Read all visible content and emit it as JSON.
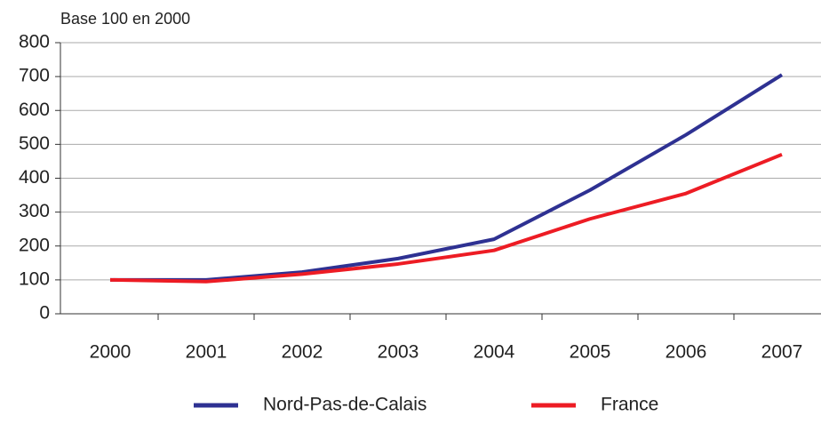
{
  "chart_data": {
    "type": "line",
    "y_label": "Base 100 en 2000",
    "categories": [
      "2000",
      "2001",
      "2002",
      "2003",
      "2004",
      "2005",
      "2006",
      "2007"
    ],
    "series": [
      {
        "name": "Nord-Pas-de-Calais",
        "color": "#2e3192",
        "values": [
          100,
          100,
          123,
          163,
          220,
          365,
          528,
          705
        ]
      },
      {
        "name": "France",
        "color": "#ed1c24",
        "values": [
          100,
          95,
          117,
          147,
          187,
          280,
          355,
          470
        ]
      }
    ],
    "ylim": [
      0,
      800
    ],
    "yticks": [
      0,
      100,
      200,
      300,
      400,
      500,
      600,
      700,
      800
    ],
    "grid": true,
    "legend": "bottom"
  }
}
